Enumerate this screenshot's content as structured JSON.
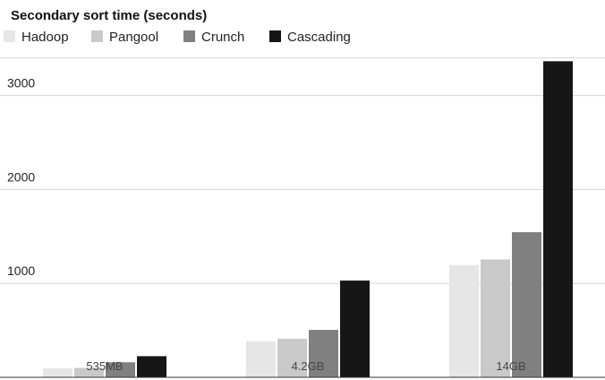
{
  "chart_data": {
    "type": "bar",
    "title": "Secondary sort time (seconds)",
    "xlabel": "",
    "ylabel": "",
    "categories": [
      "535MB",
      "4.2GB",
      "14GB"
    ],
    "series": [
      {
        "name": "Hadoop",
        "values": [
          95,
          385,
          1195
        ],
        "color": "#e6e6e6"
      },
      {
        "name": "Pangool",
        "values": [
          100,
          410,
          1255
        ],
        "color": "#c9c9c9"
      },
      {
        "name": "Crunch",
        "values": [
          160,
          505,
          1545
        ],
        "color": "#808080"
      },
      {
        "name": "Cascading",
        "values": [
          225,
          1030,
          3365
        ],
        "color": "#161616"
      }
    ],
    "ylim": [
      0,
      3400
    ],
    "yticks": [
      1000,
      2000,
      3000
    ],
    "grid": true,
    "legend": "top-left"
  }
}
